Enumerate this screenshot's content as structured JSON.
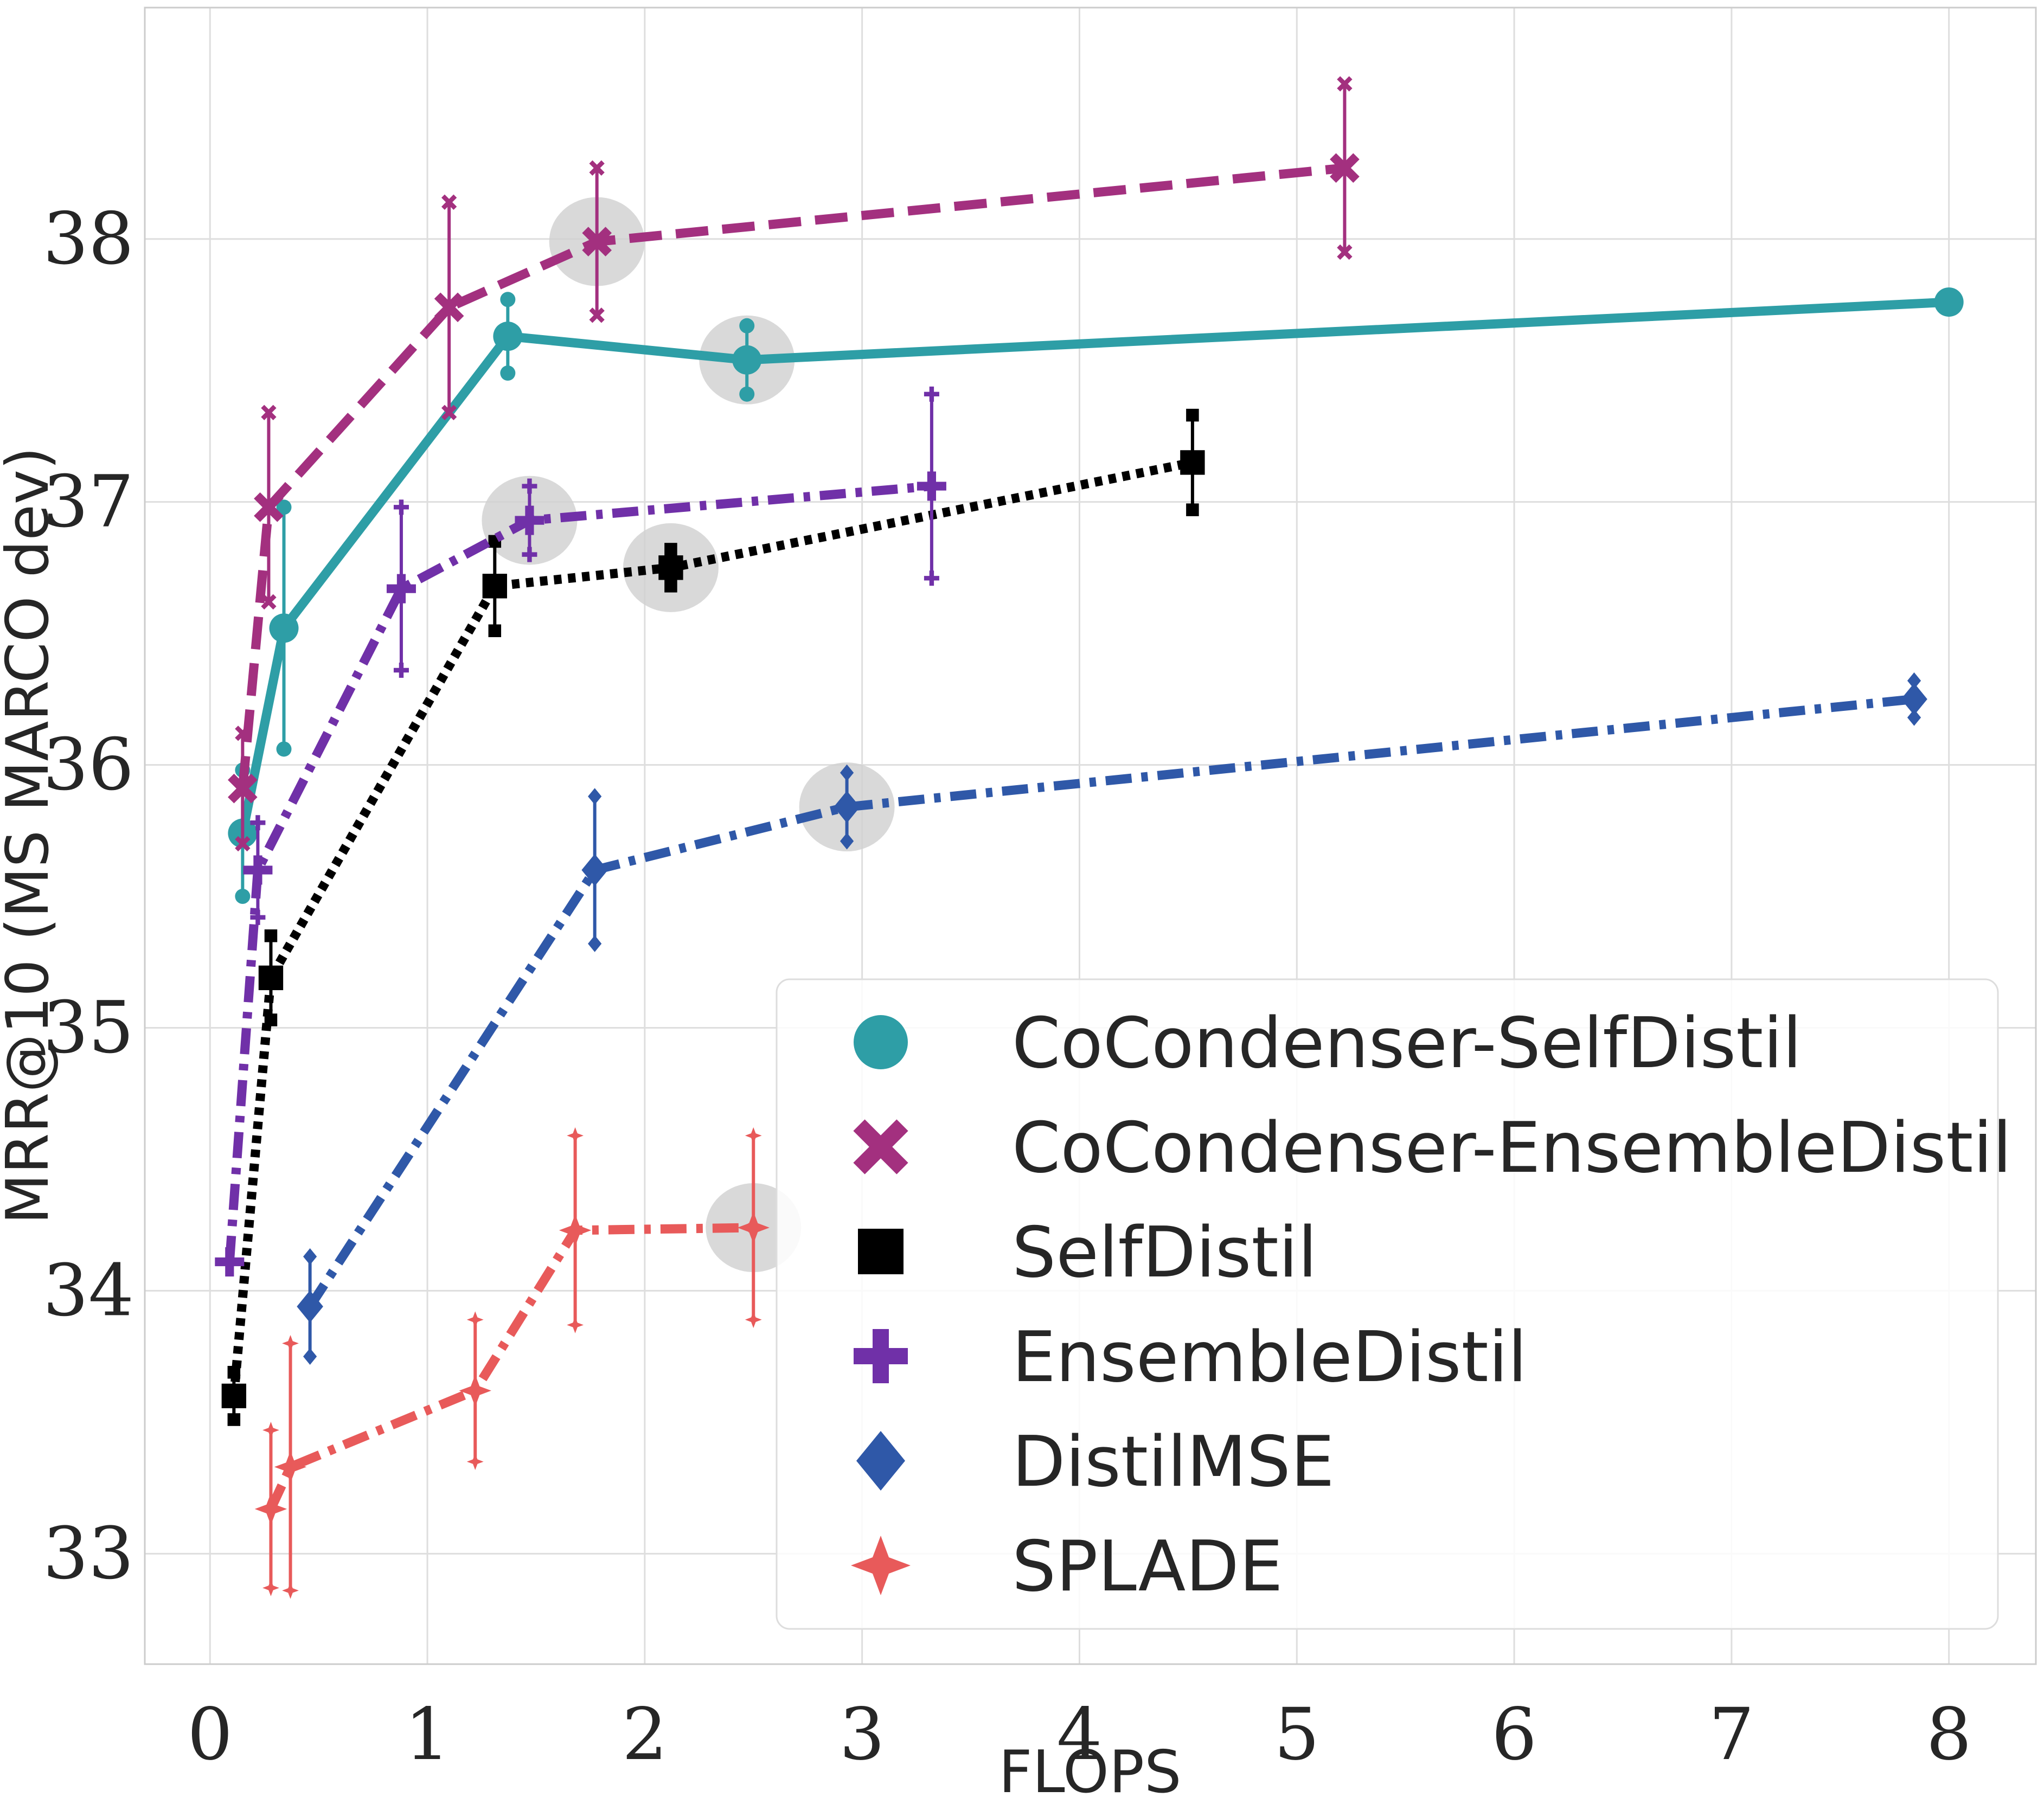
{
  "chart_data": {
    "type": "line",
    "title": "",
    "xlabel": "FLOPS",
    "ylabel": "MRR@10 (MS MARCO dev)",
    "xlim": [
      -0.3,
      8.4
    ],
    "ylim": [
      32.58,
      38.88
    ],
    "xticks": [
      0,
      1,
      2,
      3,
      4,
      5,
      6,
      7,
      8
    ],
    "xtick_labels": [
      "0",
      "1",
      "2",
      "3",
      "4",
      "5",
      "6",
      "7",
      "8"
    ],
    "yticks": [
      33,
      34,
      35,
      36,
      37,
      38
    ],
    "ytick_labels": [
      "33",
      "34",
      "35",
      "36",
      "37",
      "38"
    ],
    "grid": true,
    "legend_position": "bottom-right",
    "series": [
      {
        "name": "CoCondenser-SelfDistil",
        "color": "#2e9ea6",
        "marker": "circle",
        "linestyle": "solid",
        "x": [
          0.15,
          0.34,
          1.37,
          2.47,
          8.0
        ],
        "y": [
          35.74,
          36.52,
          37.63,
          37.54,
          37.76
        ],
        "err": [
          0.24,
          0.46,
          0.14,
          0.13,
          0
        ],
        "highlighted": [
          false,
          false,
          false,
          true,
          false
        ]
      },
      {
        "name": "CoCondenser-EnsembleDistil",
        "color": "#a3307f",
        "marker": "x",
        "linestyle": "dashed",
        "x": [
          0.15,
          0.27,
          1.1,
          1.78,
          5.22
        ],
        "y": [
          35.91,
          36.98,
          37.74,
          37.99,
          38.27
        ],
        "err": [
          0.21,
          0.36,
          0.4,
          0.28,
          0.32
        ],
        "highlighted": [
          false,
          false,
          false,
          true,
          false
        ]
      },
      {
        "name": "SelfDistil",
        "color": "#000000",
        "marker": "square",
        "linestyle": "dotted",
        "x": [
          0.11,
          0.28,
          1.31,
          2.12,
          4.52
        ],
        "y": [
          33.6,
          35.19,
          36.68,
          36.75,
          37.15
        ],
        "err": [
          0.09,
          0.16,
          0.17,
          0.07,
          0.18
        ],
        "highlighted": [
          false,
          false,
          false,
          true,
          false
        ]
      },
      {
        "name": "EnsembleDistil",
        "color": "#7030a8",
        "marker": "plus",
        "linestyle": "dashdot",
        "x": [
          0.09,
          0.22,
          0.88,
          1.47,
          3.32
        ],
        "y": [
          34.11,
          35.6,
          36.67,
          36.93,
          37.06
        ],
        "err": [
          0,
          0.18,
          0.31,
          0.13,
          0.35
        ],
        "highlighted": [
          false,
          false,
          false,
          true,
          false
        ]
      },
      {
        "name": "DistilMSE",
        "color": "#2f58a8",
        "marker": "diamond",
        "linestyle": "dashdot",
        "x": [
          0.46,
          1.77,
          2.93,
          7.84
        ],
        "y": [
          33.94,
          35.6,
          35.84,
          36.25
        ],
        "err": [
          0.19,
          0.28,
          0.13,
          0.07
        ],
        "highlighted": [
          false,
          false,
          true,
          false
        ]
      },
      {
        "name": "SPLADE",
        "color": "#e85a5a",
        "marker": "star4",
        "linestyle": "dashdot",
        "x": [
          0.28,
          0.37,
          1.22,
          1.68,
          2.5
        ],
        "y": [
          33.17,
          33.33,
          33.62,
          34.23,
          34.24
        ],
        "err": [
          0.3,
          0.47,
          0.27,
          0.36,
          0.35
        ],
        "highlighted": [
          false,
          false,
          false,
          false,
          true
        ]
      }
    ]
  }
}
